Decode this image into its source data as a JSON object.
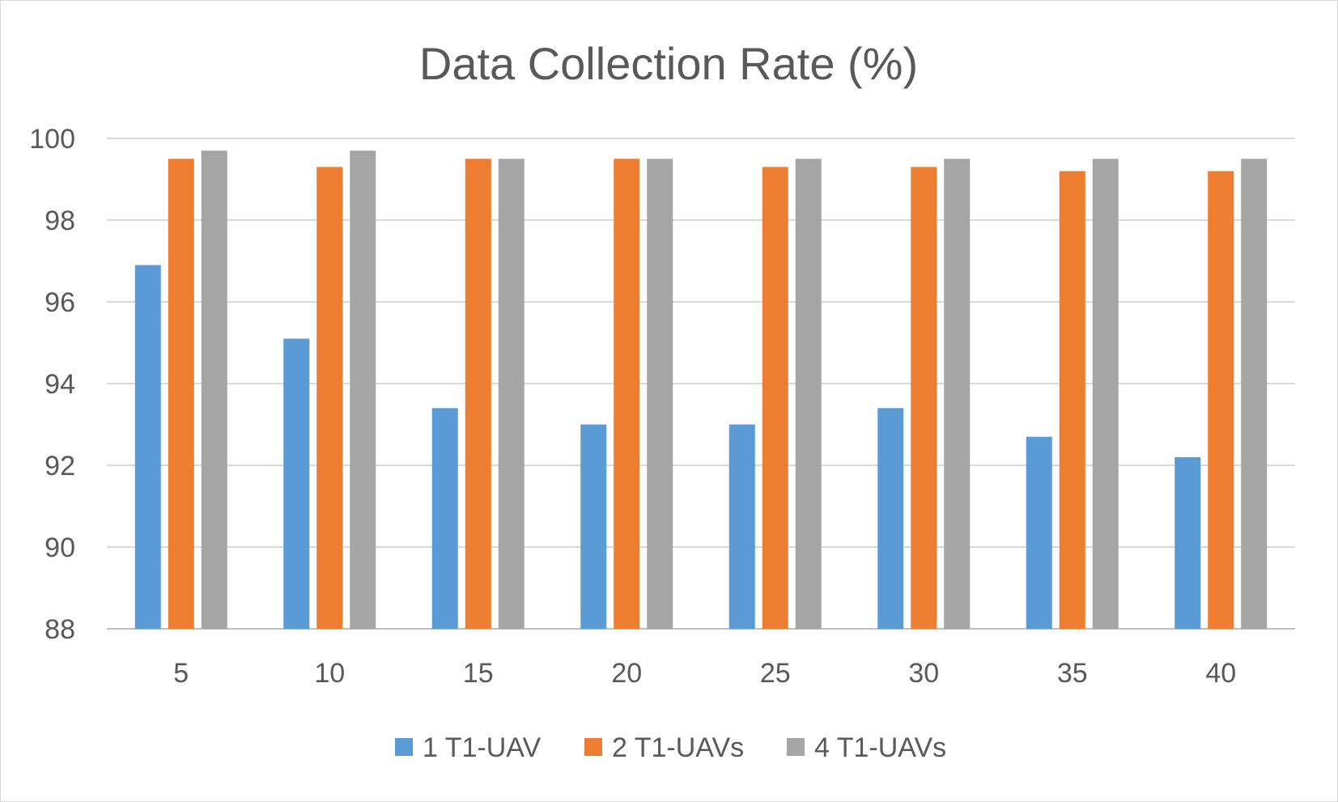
{
  "chart_data": {
    "type": "bar",
    "title": "Data Collection Rate (%)",
    "xlabel": "",
    "ylabel": "",
    "ylim": [
      88,
      100
    ],
    "yticks": [
      88,
      90,
      92,
      94,
      96,
      98,
      100
    ],
    "grid": true,
    "legend_position": "bottom",
    "categories": [
      "5",
      "10",
      "15",
      "20",
      "25",
      "30",
      "35",
      "40"
    ],
    "series": [
      {
        "name": "1 T1-UAV",
        "color": "#5b9bd5",
        "values": [
          96.9,
          95.1,
          93.4,
          93.0,
          93.0,
          93.4,
          92.7,
          92.2
        ]
      },
      {
        "name": "2 T1-UAVs",
        "color": "#ed7d31",
        "values": [
          99.5,
          99.3,
          99.5,
          99.5,
          99.3,
          99.3,
          99.2,
          99.2
        ]
      },
      {
        "name": "4 T1-UAVs",
        "color": "#a5a5a5",
        "values": [
          99.7,
          99.7,
          99.5,
          99.5,
          99.5,
          99.5,
          99.5,
          99.5
        ]
      }
    ]
  }
}
